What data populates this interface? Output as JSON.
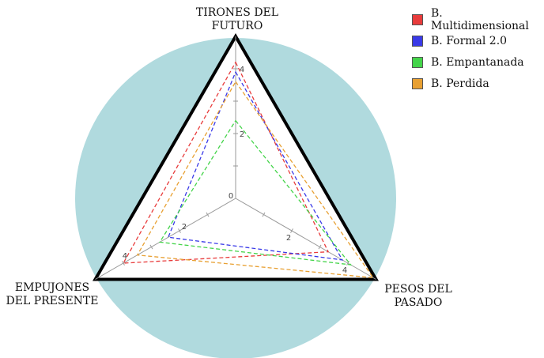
{
  "chart_data": {
    "type": "radar",
    "axes": [
      {
        "label_lines": [
          "TIRONES DEL",
          "FUTURO"
        ]
      },
      {
        "label_lines": [
          "PESOS DEL",
          "PASADO"
        ]
      },
      {
        "label_lines": [
          "EMPUJONES",
          "DEL PRESENTE"
        ]
      }
    ],
    "range": [
      0,
      5
    ],
    "tick_labels": [
      "0",
      "2",
      "4"
    ],
    "series": [
      {
        "name": "B. Multidimensional",
        "color": "#e83c3c",
        "values": [
          4.2,
          3.3,
          4.0
        ]
      },
      {
        "name": "B. Formal 2.0",
        "color": "#3a3ae8",
        "values": [
          3.9,
          3.8,
          2.4
        ]
      },
      {
        "name": "B. Empantanada",
        "color": "#44d44a",
        "values": [
          2.4,
          4.1,
          2.7
        ]
      },
      {
        "name": "B. Perdida",
        "color": "#e8a032",
        "values": [
          3.6,
          4.9,
          3.5
        ]
      }
    ],
    "background_circle_color": "#b0dade",
    "frame_color": "#000000",
    "legend_position": "top-right"
  }
}
